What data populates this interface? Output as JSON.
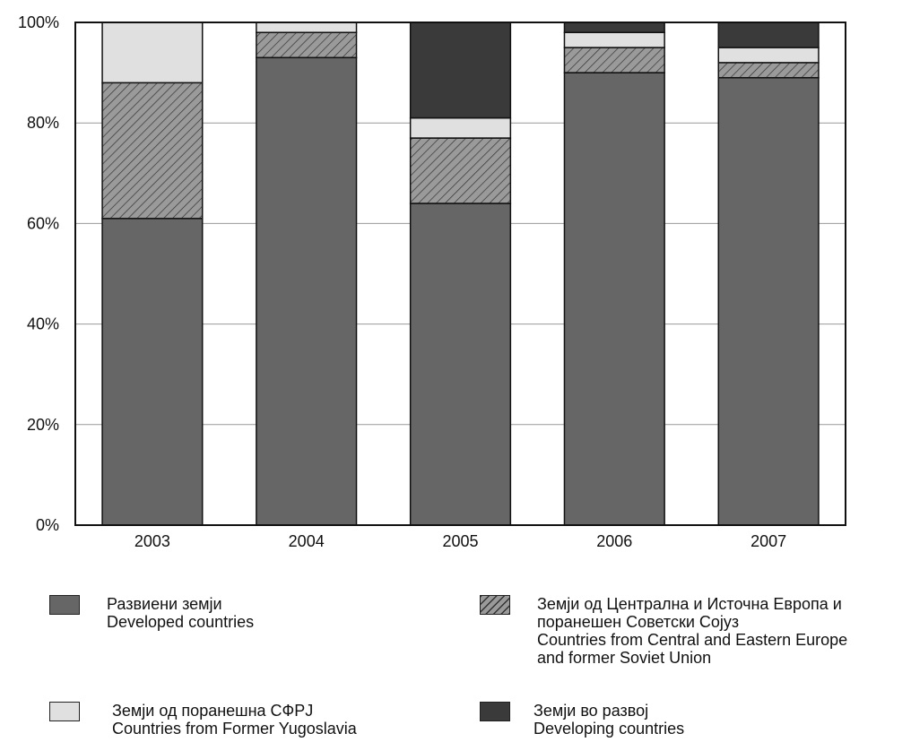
{
  "chart_data": {
    "type": "bar",
    "stacked": true,
    "categories": [
      "2003",
      "2004",
      "2005",
      "2006",
      "2007"
    ],
    "ylim": [
      0,
      100
    ],
    "yticks": [
      "0%",
      "20%",
      "40%",
      "60%",
      "80%",
      "100%"
    ],
    "grid": true,
    "legend_position": "bottom",
    "series": [
      {
        "name": "Развиени земји / Developed countries",
        "values": [
          61,
          93,
          64,
          90,
          89
        ]
      },
      {
        "name": "Земји од Централна и Источна Европа и поранешен Советски Сојуз / Countries from Central and Eastern Europe and former Soviet Union",
        "values": [
          27,
          5,
          13,
          5,
          3
        ]
      },
      {
        "name": "Земји од поранешна СФРЈ / Countries from Former Yugoslavia",
        "values": [
          12,
          2,
          4,
          3,
          3
        ]
      },
      {
        "name": "Земји во развој / Developing countries",
        "values": [
          0,
          0,
          19,
          2,
          5
        ]
      }
    ]
  },
  "legend": [
    {
      "swatch": "developed",
      "color": "#666666",
      "lines": [
        "Развиени земји",
        "Developed countries"
      ]
    },
    {
      "swatch": "cee",
      "color": "#9a9a9a",
      "lines": [
        "Земји од Централна и Источна Европа и",
        "поранешен Советски Сојуз",
        "Countries from Central and Eastern Europe",
        "and former Soviet Union"
      ]
    },
    {
      "swatch": "yugo",
      "color": "#e0e0e0",
      "lines": [
        "Земји од поранешна СФРЈ",
        "Countries from Former Yugoslavia"
      ]
    },
    {
      "swatch": "developing",
      "color": "#3a3a3a",
      "lines": [
        "Земји во развој",
        "Developing countries"
      ]
    }
  ]
}
